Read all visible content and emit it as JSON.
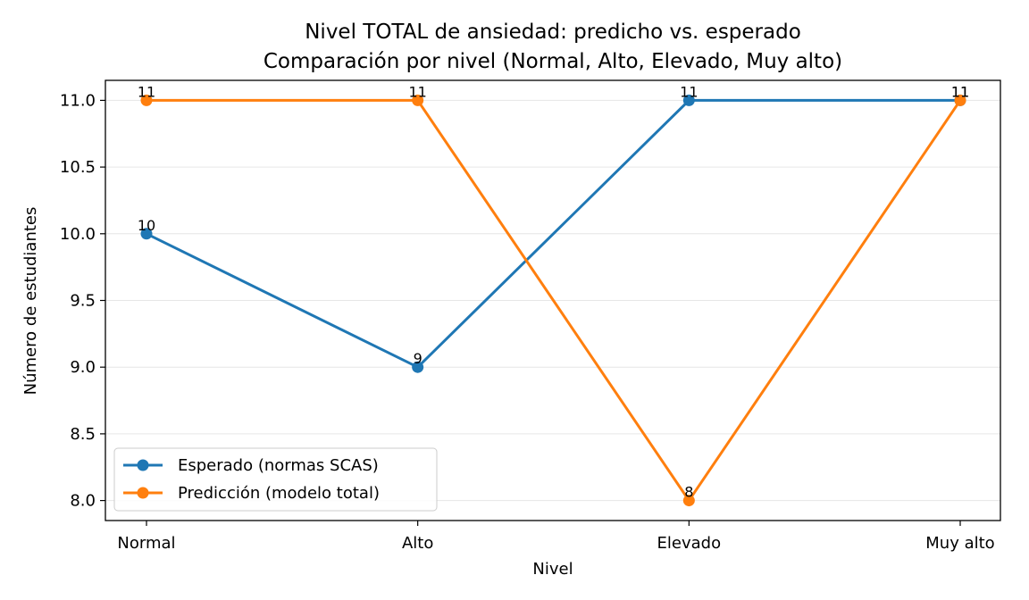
{
  "chart_data": {
    "type": "line",
    "title": "Nivel TOTAL de ansiedad: predicho vs. esperado",
    "subtitle": "Comparación por nivel (Normal, Alto, Elevado, Muy alto)",
    "xlabel": "Nivel",
    "ylabel": "Número de estudiantes",
    "categories": [
      "Normal",
      "Alto",
      "Elevado",
      "Muy alto"
    ],
    "ylim": [
      7.85,
      11.15
    ],
    "yticks": [
      "8.0",
      "8.5",
      "9.0",
      "9.5",
      "10.0",
      "10.5",
      "11.0"
    ],
    "grid": "horizontal",
    "legend_position": "lower-left",
    "series": [
      {
        "name": "Esperado (normas SCAS)",
        "values": [
          10,
          9,
          11,
          11
        ],
        "color": "#1f77b4"
      },
      {
        "name": "Predicción (modelo total)",
        "values": [
          11,
          11,
          8,
          11
        ],
        "color": "#ff7f0e"
      }
    ]
  }
}
